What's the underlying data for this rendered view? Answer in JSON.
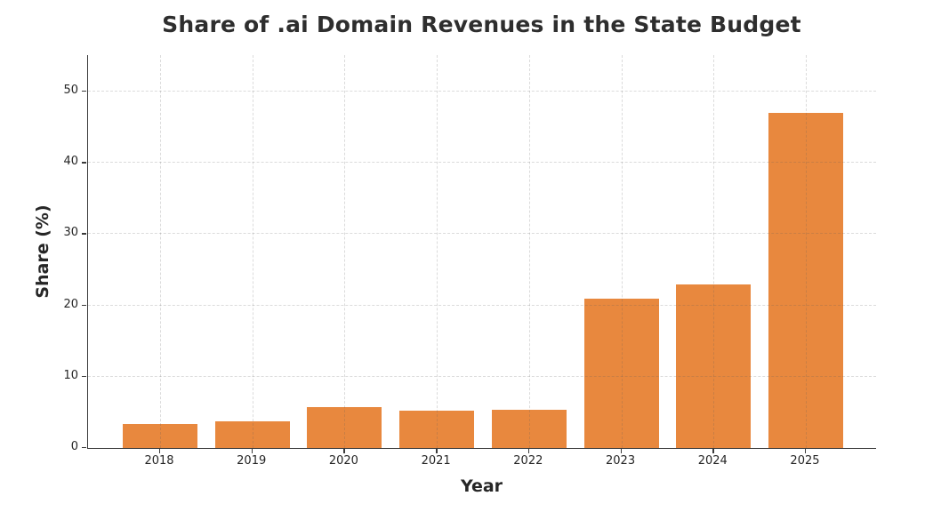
{
  "title": "Share of .ai Domain Revenues in the State Budget",
  "chart_data": {
    "type": "bar",
    "title": "Share of .ai Domain Revenues in the State Budget",
    "xlabel": "Year",
    "ylabel": "Share (%)",
    "categories": [
      "2018",
      "2019",
      "2020",
      "2021",
      "2022",
      "2023",
      "2024",
      "2025"
    ],
    "values": [
      3.4,
      3.7,
      5.8,
      5.2,
      5.4,
      21,
      23,
      47
    ],
    "ylim": [
      0,
      55
    ],
    "yticks": [
      0,
      10,
      20,
      30,
      40,
      50
    ],
    "grid": true,
    "grid_style": "dashed",
    "legend": "none",
    "colors": {
      "bar": "#e8883e",
      "grid": "#d9d9d9",
      "axis": "#3a3a3a",
      "tick_label": "#262626",
      "title": "#2e2e2e",
      "background": "#ffffff"
    }
  }
}
